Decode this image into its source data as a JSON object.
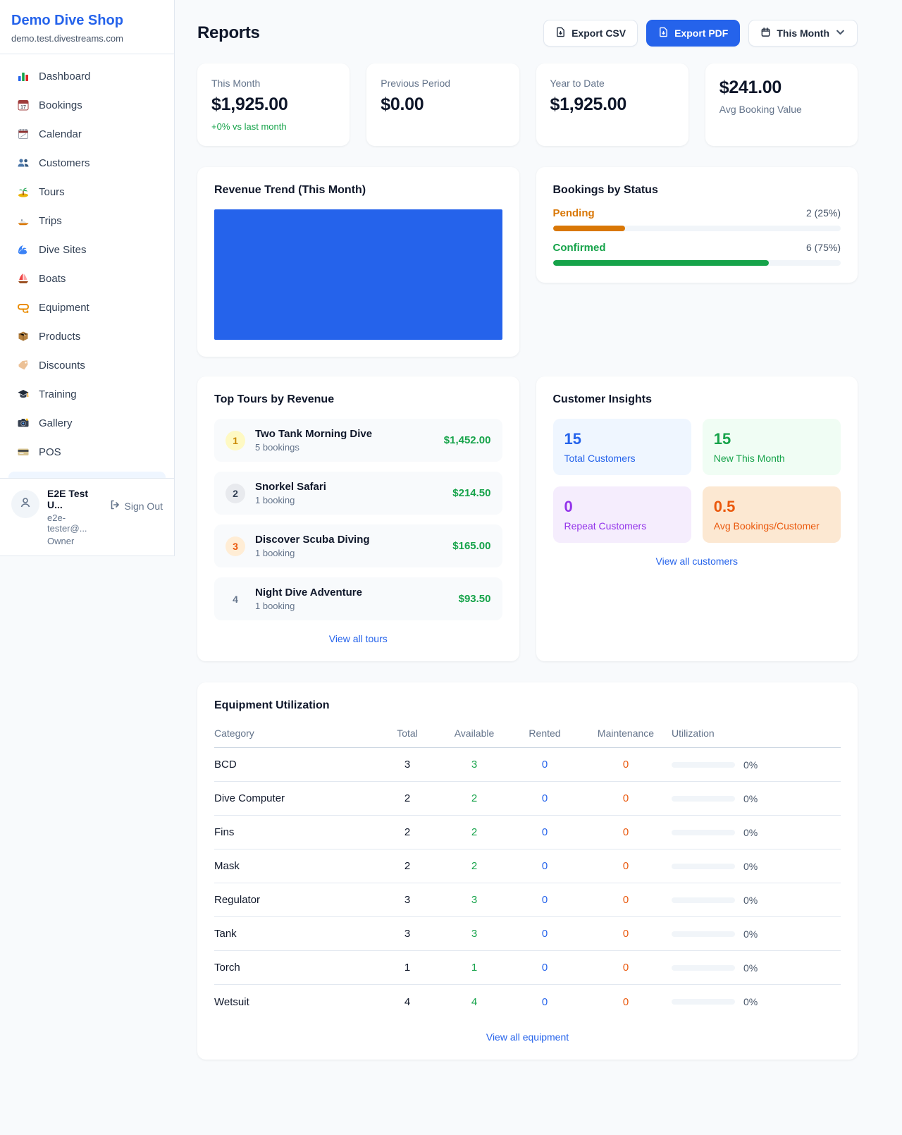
{
  "sidebar": {
    "shop_name": "Demo Dive Shop",
    "shop_domain": "demo.test.divestreams.com",
    "items": [
      {
        "label": "Dashboard",
        "icon": "bar-chart-icon"
      },
      {
        "label": "Bookings",
        "icon": "calendar-date-icon"
      },
      {
        "label": "Calendar",
        "icon": "spiral-calendar-icon"
      },
      {
        "label": "Customers",
        "icon": "people-icon"
      },
      {
        "label": "Tours",
        "icon": "island-icon"
      },
      {
        "label": "Trips",
        "icon": "speedboat-icon"
      },
      {
        "label": "Dive Sites",
        "icon": "wave-icon"
      },
      {
        "label": "Boats",
        "icon": "sailboat-icon"
      },
      {
        "label": "Equipment",
        "icon": "diving-mask-icon"
      },
      {
        "label": "Products",
        "icon": "package-icon"
      },
      {
        "label": "Discounts",
        "icon": "tag-icon"
      },
      {
        "label": "Training",
        "icon": "graduation-cap-icon"
      },
      {
        "label": "Gallery",
        "icon": "camera-icon"
      },
      {
        "label": "POS",
        "icon": "credit-card-icon"
      }
    ],
    "user": {
      "name": "E2E Test U...",
      "email": "e2e-tester@...",
      "role": "Owner",
      "sign_out_label": "Sign Out"
    }
  },
  "header": {
    "title": "Reports",
    "export_csv_label": "Export CSV",
    "export_pdf_label": "Export PDF",
    "period_label": "This Month"
  },
  "stats": {
    "cards": [
      {
        "label": "This Month",
        "value": "$1,925.00",
        "delta": "+0% vs last month",
        "value_first": false
      },
      {
        "label": "Previous Period",
        "value": "$0.00",
        "delta": "",
        "value_first": false
      },
      {
        "label": "Year to Date",
        "value": "$1,925.00",
        "delta": "",
        "value_first": false
      },
      {
        "label": "Avg Booking Value",
        "value": "$241.00",
        "delta": "",
        "value_first": true
      }
    ]
  },
  "revenue_trend": {
    "title": "Revenue Trend (This Month)",
    "chart_color": "#2563eb"
  },
  "bookings_by_status": {
    "title": "Bookings by Status",
    "items": [
      {
        "label": "Pending",
        "value": "2 (25%)",
        "percent": 25,
        "color": "#d97706"
      },
      {
        "label": "Confirmed",
        "value": "6 (75%)",
        "percent": 75,
        "color": "#16a34a"
      }
    ]
  },
  "top_tours": {
    "title": "Top Tours by Revenue",
    "view_all_label": "View all tours",
    "items": [
      {
        "rank": "1",
        "name": "Two Tank Morning Dive",
        "bookings": "5 bookings",
        "revenue": "$1,452.00",
        "badge_bg": "#fef9c3",
        "badge_color": "#ca8a04"
      },
      {
        "rank": "2",
        "name": "Snorkel Safari",
        "bookings": "1 booking",
        "revenue": "$214.50",
        "badge_bg": "#e8eaee",
        "badge_color": "#334155"
      },
      {
        "rank": "3",
        "name": "Discover Scuba Diving",
        "bookings": "1 booking",
        "revenue": "$165.00",
        "badge_bg": "#ffedd5",
        "badge_color": "#ea580c"
      },
      {
        "rank": "4",
        "name": "Night Dive Adventure",
        "bookings": "1 booking",
        "revenue": "$93.50",
        "badge_bg": "transparent",
        "badge_color": "#64748b"
      }
    ]
  },
  "customer_insights": {
    "title": "Customer Insights",
    "view_all_label": "View all customers",
    "tiles": [
      {
        "value": "15",
        "label": "Total Customers",
        "bg": "#eff6ff",
        "color": "#2563eb"
      },
      {
        "value": "15",
        "label": "New This Month",
        "bg": "#f0fdf4",
        "color": "#16a34a"
      },
      {
        "value": "0",
        "label": "Repeat Customers",
        "bg": "#f5edfd",
        "color": "#9333ea"
      },
      {
        "value": "0.5",
        "label": "Avg Bookings/Customer",
        "bg": "#fce8d2",
        "color": "#ea580c"
      }
    ]
  },
  "equipment": {
    "title": "Equipment Utilization",
    "view_all_label": "View all equipment",
    "columns": [
      "Category",
      "Total",
      "Available",
      "Rented",
      "Maintenance",
      "Utilization"
    ],
    "rows": [
      {
        "category": "BCD",
        "total": "3",
        "available": "3",
        "rented": "0",
        "maintenance": "0",
        "utilization": "0%",
        "utilization_percent": 0
      },
      {
        "category": "Dive Computer",
        "total": "2",
        "available": "2",
        "rented": "0",
        "maintenance": "0",
        "utilization": "0%",
        "utilization_percent": 0
      },
      {
        "category": "Fins",
        "total": "2",
        "available": "2",
        "rented": "0",
        "maintenance": "0",
        "utilization": "0%",
        "utilization_percent": 0
      },
      {
        "category": "Mask",
        "total": "2",
        "available": "2",
        "rented": "0",
        "maintenance": "0",
        "utilization": "0%",
        "utilization_percent": 0
      },
      {
        "category": "Regulator",
        "total": "3",
        "available": "3",
        "rented": "0",
        "maintenance": "0",
        "utilization": "0%",
        "utilization_percent": 0
      },
      {
        "category": "Tank",
        "total": "3",
        "available": "3",
        "rented": "0",
        "maintenance": "0",
        "utilization": "0%",
        "utilization_percent": 0
      },
      {
        "category": "Torch",
        "total": "1",
        "available": "1",
        "rented": "0",
        "maintenance": "0",
        "utilization": "0%",
        "utilization_percent": 0
      },
      {
        "category": "Wetsuit",
        "total": "4",
        "available": "4",
        "rented": "0",
        "maintenance": "0",
        "utilization": "0%",
        "utilization_percent": 0
      }
    ]
  }
}
